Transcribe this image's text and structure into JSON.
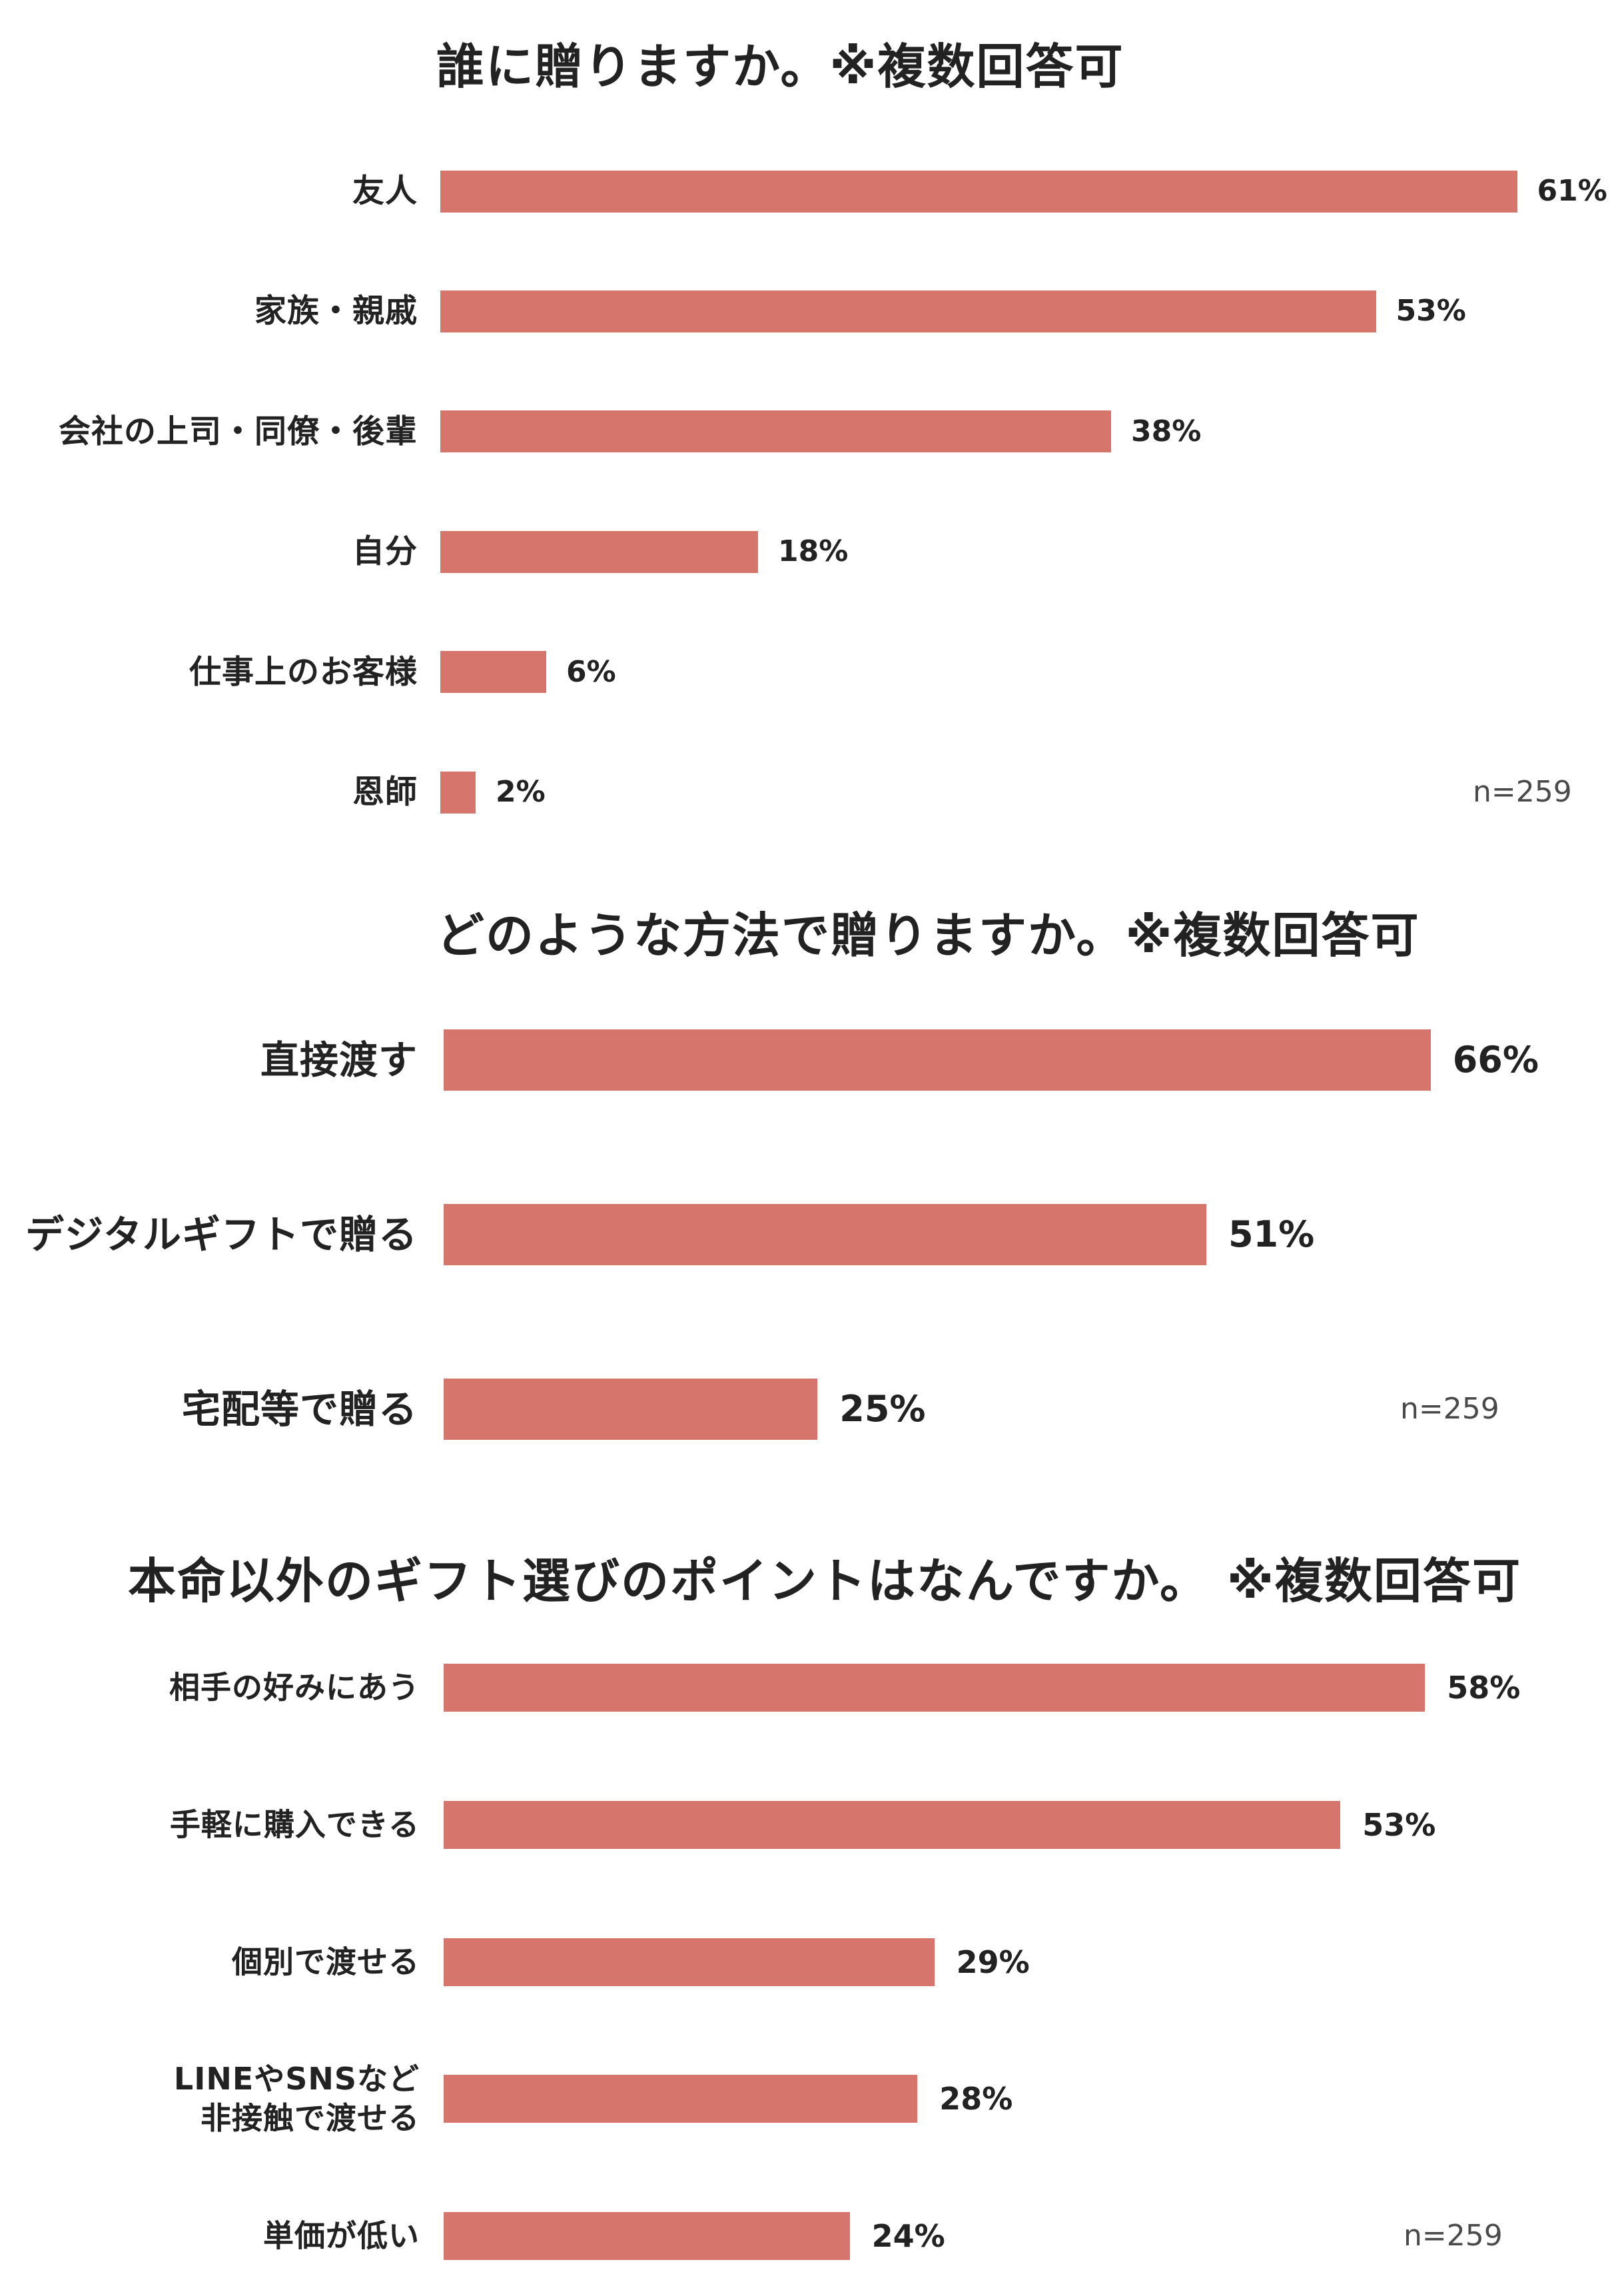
{
  "colors": {
    "bar": "#D5756B",
    "text": "#222222",
    "note": "#4A4A4A",
    "background": "#FFFFFF"
  },
  "chart_data": [
    {
      "type": "bar",
      "orientation": "horizontal",
      "title": "誰に贈りますか。※複数回答可",
      "categories": [
        "友人",
        "家族・親戚",
        "会社の上司・同僚・後輩",
        "自分",
        "仕事上のお客様",
        "恩師"
      ],
      "values": [
        61,
        53,
        38,
        18,
        6,
        2
      ],
      "unit": "%",
      "note": "n=259",
      "grid": false
    },
    {
      "type": "bar",
      "orientation": "horizontal",
      "title": "どのような方法で贈りますか。※複数回答可",
      "categories": [
        "直接渡す",
        "デジタルギフトで贈る",
        "宅配等で贈る"
      ],
      "values": [
        66,
        51,
        25
      ],
      "unit": "%",
      "note": "n=259",
      "grid": false
    },
    {
      "type": "bar",
      "orientation": "horizontal",
      "title": "本命以外のギフト選びのポイントはなんですか。 ※複数回答可",
      "categories": [
        "相手の好みにあう",
        "手軽に購入できる",
        "個別で渡せる",
        "LINEやSNSなど\n非接触で渡せる",
        "単価が低い"
      ],
      "values": [
        58,
        53,
        29,
        28,
        24
      ],
      "unit": "%",
      "note": "n=259",
      "grid": false
    }
  ]
}
